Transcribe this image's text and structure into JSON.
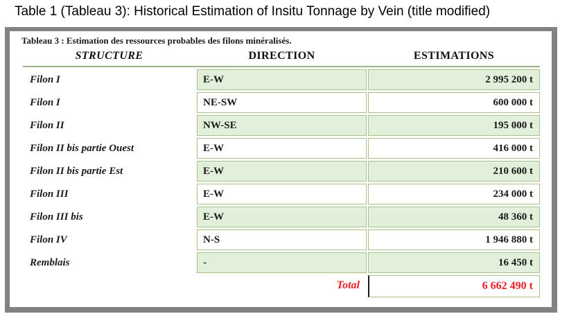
{
  "page_title": "Table 1 (Tableau 3): Historical Estimation of Insitu Tonnage by Vein (title modified)",
  "table": {
    "caption": "Tableau 3 : Estimation des ressources probables des filons minéralisés.",
    "columns": [
      "STRUCTURE",
      "DIRECTION",
      "ESTIMATIONS"
    ],
    "rows": [
      {
        "structure": "Filon I",
        "direction": "E-W",
        "estimation": "2 995 200 t",
        "highlighted": true
      },
      {
        "structure": "Filon I",
        "direction": "NE-SW",
        "estimation": "600 000 t",
        "highlighted": false
      },
      {
        "structure": "Filon II",
        "direction": "NW-SE",
        "estimation": "195 000 t",
        "highlighted": true
      },
      {
        "structure": "Filon II bis partie Ouest",
        "direction": "E-W",
        "estimation": "416 000 t",
        "highlighted": false
      },
      {
        "structure": "Filon II bis partie Est",
        "direction": "E-W",
        "estimation": "210 600 t",
        "highlighted": true
      },
      {
        "structure": "Filon III",
        "direction": "E-W",
        "estimation": "234 000 t",
        "highlighted": false
      },
      {
        "structure": "Filon III bis",
        "direction": "E-W",
        "estimation": "48 360 t",
        "highlighted": true
      },
      {
        "structure": "Filon IV",
        "direction": "N-S",
        "estimation": "1 946 880 t",
        "highlighted": false
      },
      {
        "structure": "Remblais",
        "direction": "-",
        "estimation": "16 450 t",
        "highlighted": true
      }
    ],
    "total": {
      "label": "Total",
      "value": "6 662 490 t"
    }
  },
  "colors": {
    "highlight_green": "#e2efda",
    "cell_border_green": "#a6c28c",
    "frame_gray": "#828282",
    "total_red": "#ee1c25"
  }
}
